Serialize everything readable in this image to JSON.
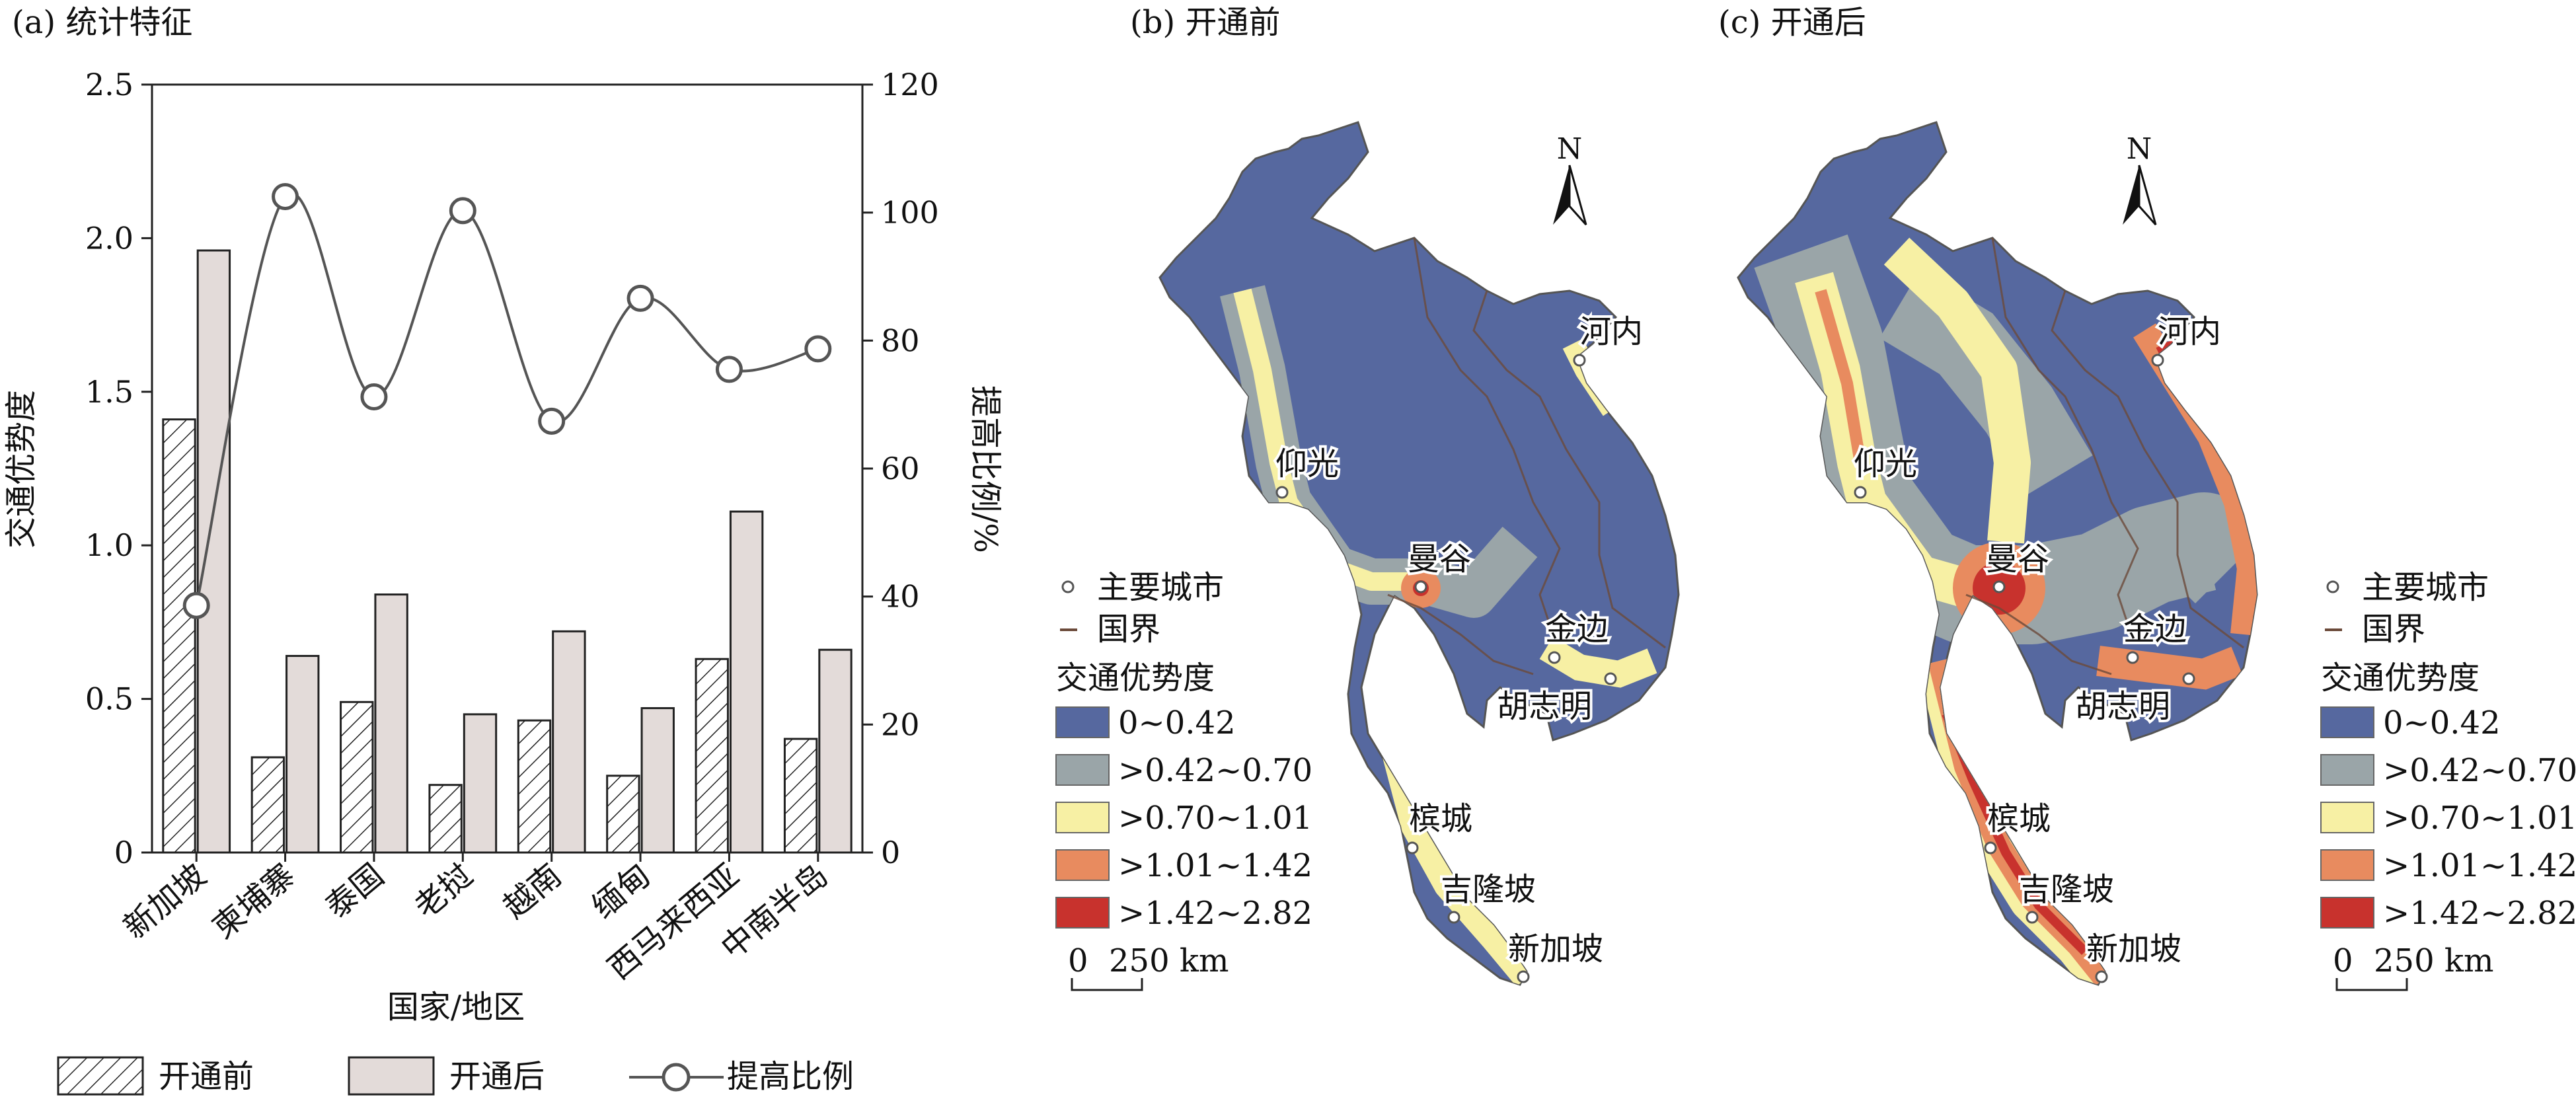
{
  "colors": {
    "bar_before_fill": "#ffffff",
    "bar_after_fill": "#e3dbd9",
    "line": "#555555",
    "class_colors": [
      "#56689f",
      "#9aa5a8",
      "#f7f0a4",
      "#e88b5f",
      "#c8322d"
    ],
    "border": "#6b4a3a"
  },
  "panel_a": {
    "title": "(a) 统计特征",
    "xlabel": "国家/地区",
    "ylabel_left": "交通优势度",
    "ylabel_right": "提高比例/%",
    "legend": {
      "before": "开通前",
      "after": "开通后",
      "ratio": "提高比例"
    }
  },
  "chart_data": {
    "type": "bar",
    "title": "(a) 统计特征",
    "categories": [
      "新加坡",
      "柬埔寨",
      "泰国",
      "老挝",
      "越南",
      "缅甸",
      "西马来西亚",
      "中南半岛"
    ],
    "series": [
      {
        "name": "开通前",
        "type": "bar",
        "axis": "left",
        "pattern": "hatched",
        "values": [
          1.41,
          0.31,
          0.49,
          0.22,
          0.43,
          0.25,
          0.63,
          0.37
        ]
      },
      {
        "name": "开通后",
        "type": "bar",
        "axis": "left",
        "values": [
          1.96,
          0.64,
          0.84,
          0.45,
          0.72,
          0.47,
          1.11,
          0.66
        ]
      },
      {
        "name": "提高比例",
        "type": "line",
        "axis": "right",
        "smooth": true,
        "values": [
          38.6,
          102.5,
          71.2,
          100.3,
          67.4,
          86.6,
          75.5,
          78.7
        ]
      }
    ],
    "xlabel": "国家/地区",
    "ylabel": "交通优势度",
    "ylabel_right": "提高比例/%",
    "ylim": [
      0,
      2.5
    ],
    "yticks": [
      "0",
      "0.5",
      "1.0",
      "1.5",
      "2.0",
      "2.5"
    ],
    "ylim_right": [
      0,
      120
    ],
    "yticks_right": [
      "0",
      "20",
      "40",
      "60",
      "80",
      "100",
      "120"
    ],
    "grid": false,
    "legend_position": "bottom"
  },
  "map_b": {
    "title": "(b) 开通前",
    "north": "N",
    "cities": [
      "河内",
      "仰光",
      "曼谷",
      "金边",
      "胡志明",
      "槟城",
      "吉隆坡",
      "新加坡"
    ],
    "legend": {
      "city": "主要城市",
      "border": "国界",
      "heading": "交通优势度",
      "classes": [
        "0~0.42",
        ">0.42~0.70",
        ">0.70~1.01",
        ">1.01~1.42",
        ">1.42~2.82"
      ]
    },
    "scale": {
      "zero": "0",
      "label": "250 km"
    }
  },
  "map_c": {
    "title": "(c) 开通后",
    "north": "N",
    "cities": [
      "河内",
      "仰光",
      "曼谷",
      "金边",
      "胡志明",
      "槟城",
      "吉隆坡",
      "新加坡"
    ],
    "legend": {
      "city": "主要城市",
      "border": "国界",
      "heading": "交通优势度",
      "classes": [
        "0~0.42",
        ">0.42~0.70",
        ">0.70~1.01",
        ">1.01~1.42",
        ">1.42~2.82"
      ]
    },
    "scale": {
      "zero": "0",
      "label": "250 km"
    }
  }
}
